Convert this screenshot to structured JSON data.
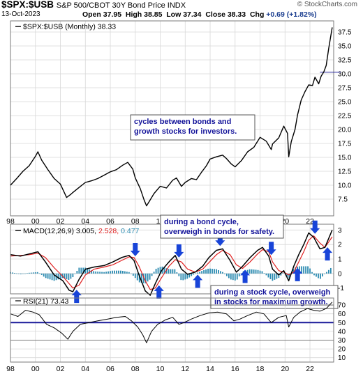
{
  "header": {
    "symbol": "$SPX:$USB",
    "description": "S&P 500/CBOT 30Y Bond Price INDX",
    "date": "13-Oct-2023",
    "open_label": "Open",
    "open": "37.95",
    "high_label": "High",
    "high": "38.85",
    "low_label": "Low",
    "low": "37.34",
    "close_label": "Close",
    "close": "38.33",
    "chg_label": "Chg",
    "chg": "+0.69 (+1.82%)",
    "credit": "© StockCharts.com"
  },
  "colors": {
    "price": "#000000",
    "macd": "#000000",
    "signal": "#e02020",
    "histogram": "#2a8ab0",
    "arrows": "#1844d8",
    "rsi_lines": "#1a1a9a",
    "note_text": "#14149a",
    "note_border": "#555555",
    "grid": "#d8d8d8"
  },
  "chart_data": [
    {
      "type": "line",
      "panel": "price",
      "legend": "$SPX:$USB (Monthly) 38.33",
      "x_tick_labels": [
        "98",
        "00",
        "02",
        "04",
        "06",
        "08",
        "10",
        "12",
        "14",
        "16",
        "18",
        "20",
        "22"
      ],
      "y_ticks": [
        7.5,
        10,
        12.5,
        15,
        17.5,
        20,
        22.5,
        25,
        27.5,
        30,
        32.5,
        35,
        37.5
      ],
      "y_tick_labels": [
        "7.5",
        "10.0",
        "12.5",
        "15.0",
        "17.5",
        "20.0",
        "22.5",
        "25.0",
        "27.5",
        "30.0",
        "32.5",
        "35.0",
        "37.5"
      ],
      "ylim": [
        4.5,
        39.5
      ],
      "xlim": [
        1998.0,
        2023.9
      ],
      "x": [
        1998.0,
        1998.5,
        1999.0,
        1999.5,
        2000.0,
        2000.2,
        2000.5,
        2001.0,
        2001.5,
        2002.0,
        2002.5,
        2002.8,
        2003.0,
        2003.5,
        2004.0,
        2004.5,
        2005.0,
        2005.5,
        2006.0,
        2006.5,
        2007.0,
        2007.4,
        2007.8,
        2008.0,
        2008.4,
        2008.7,
        2008.9,
        2009.1,
        2009.5,
        2010.0,
        2010.5,
        2011.0,
        2011.3,
        2011.7,
        2012.0,
        2012.5,
        2012.9,
        2013.3,
        2013.7,
        2014.0,
        2014.5,
        2015.0,
        2015.3,
        2015.7,
        2016.0,
        2016.5,
        2017.0,
        2017.5,
        2018.0,
        2018.5,
        2018.9,
        2019.0,
        2019.5,
        2019.9,
        2020.2,
        2020.3,
        2020.5,
        2020.8,
        2021.0,
        2021.3,
        2021.6,
        2021.9,
        2022.2,
        2022.4,
        2022.7,
        2022.9,
        2023.1,
        2023.3,
        2023.5,
        2023.78
      ],
      "y": [
        10.0,
        11.2,
        12.5,
        13.5,
        15.2,
        16.0,
        14.5,
        12.8,
        11.2,
        10.2,
        7.8,
        8.3,
        8.7,
        9.6,
        10.5,
        10.8,
        11.2,
        11.8,
        12.4,
        12.8,
        13.6,
        14.1,
        12.9,
        11.3,
        9.4,
        7.4,
        6.3,
        7.0,
        8.5,
        9.8,
        9.5,
        10.9,
        11.3,
        9.8,
        10.5,
        11.2,
        11.0,
        12.3,
        13.5,
        14.7,
        15.1,
        15.4,
        14.8,
        13.8,
        13.3,
        14.4,
        16.0,
        16.8,
        18.6,
        17.9,
        16.4,
        17.4,
        18.5,
        20.6,
        19.3,
        15.1,
        17.8,
        20.0,
        22.6,
        25.3,
        26.8,
        28.0,
        27.9,
        29.4,
        28.2,
        29.6,
        30.3,
        31.5,
        34.5,
        38.33
      ],
      "reference_line": 30.3,
      "annotations": [
        "cycles between bonds and",
        "growth stocks for investors."
      ]
    },
    {
      "type": "line",
      "panel": "macd",
      "legend_label": "MACD(12,26,9)",
      "legend_values": [
        "3.005",
        "2.528",
        "0.477"
      ],
      "y_ticks": [
        -1,
        0,
        1,
        2,
        3
      ],
      "y_tick_labels": [
        "-1",
        "0",
        "1",
        "2",
        "3"
      ],
      "ylim": [
        -1.4,
        3.4
      ],
      "xlim": [
        1998.0,
        2023.9
      ],
      "series": [
        {
          "role": "macd",
          "x": [
            1998.0,
            1998.8,
            1999.5,
            2000.2,
            2000.8,
            2001.5,
            2002.2,
            2002.7,
            2003.0,
            2003.5,
            2004.0,
            2004.7,
            2005.5,
            2006.2,
            2006.9,
            2007.5,
            2007.9,
            2008.3,
            2008.8,
            2009.2,
            2009.6,
            2010.1,
            2010.7,
            2011.2,
            2011.7,
            2012.2,
            2012.8,
            2013.4,
            2013.9,
            2014.5,
            2015.0,
            2015.6,
            2016.1,
            2016.6,
            2017.2,
            2017.8,
            2018.2,
            2018.7,
            2019.0,
            2019.5,
            2019.9,
            2020.3,
            2020.7,
            2021.1,
            2021.5,
            2021.9,
            2022.3,
            2022.8,
            2023.2,
            2023.78
          ],
          "y": [
            1.3,
            1.2,
            1.35,
            1.5,
            0.8,
            -0.1,
            -0.5,
            -1.15,
            -1.25,
            -0.4,
            0.3,
            0.45,
            0.55,
            0.8,
            1.1,
            1.25,
            0.9,
            -0.1,
            -1.2,
            -1.5,
            -0.7,
            0.2,
            0.8,
            1.25,
            0.3,
            -0.05,
            0.1,
            0.5,
            1.1,
            1.6,
            1.7,
            0.9,
            0.1,
            0.5,
            1.1,
            1.6,
            1.8,
            1.2,
            0.3,
            -0.1,
            0.2,
            -0.5,
            0.5,
            1.3,
            2.0,
            2.8,
            2.5,
            1.7,
            1.8,
            3.0
          ]
        },
        {
          "role": "signal",
          "x": [
            1998.0,
            1998.8,
            1999.5,
            2000.2,
            2000.8,
            2001.5,
            2002.2,
            2002.7,
            2003.0,
            2003.5,
            2004.0,
            2004.7,
            2005.5,
            2006.2,
            2006.9,
            2007.5,
            2007.9,
            2008.3,
            2008.8,
            2009.2,
            2009.6,
            2010.1,
            2010.7,
            2011.2,
            2011.7,
            2012.2,
            2012.8,
            2013.4,
            2013.9,
            2014.5,
            2015.0,
            2015.6,
            2016.1,
            2016.6,
            2017.2,
            2017.8,
            2018.2,
            2018.7,
            2019.0,
            2019.5,
            2019.9,
            2020.3,
            2020.7,
            2021.1,
            2021.5,
            2021.9,
            2022.3,
            2022.8,
            2023.2,
            2023.78
          ],
          "y": [
            1.2,
            1.25,
            1.3,
            1.4,
            1.1,
            0.4,
            -0.2,
            -0.7,
            -1.0,
            -0.8,
            -0.1,
            0.3,
            0.45,
            0.6,
            0.9,
            1.15,
            1.1,
            0.5,
            -0.5,
            -1.1,
            -1.0,
            -0.3,
            0.5,
            0.95,
            0.8,
            0.3,
            0.1,
            0.3,
            0.75,
            1.3,
            1.6,
            1.3,
            0.6,
            0.35,
            0.8,
            1.35,
            1.65,
            1.5,
            0.8,
            0.2,
            0.1,
            -0.1,
            0.1,
            0.8,
            1.5,
            2.3,
            2.6,
            2.1,
            1.8,
            2.53
          ]
        }
      ],
      "arrows_down_x": [
        2008.0,
        2011.5,
        2014.8,
        2018.9,
        2022.4
      ],
      "arrows_up_x": [
        2003.3,
        2009.9,
        2013.0,
        2016.8,
        2021.0,
        2023.4
      ],
      "annotations": [
        "during a bond cycle,",
        "overweigh in bonds for safety.",
        "during a stock cycle, overweigh",
        "in stocks for maximum growth."
      ]
    },
    {
      "type": "line",
      "panel": "rsi",
      "legend_label": "RSI(21)",
      "legend_value": "73.43",
      "y_ticks": [
        10,
        20,
        30,
        40,
        50,
        60,
        70
      ],
      "y_tick_labels": [
        "10",
        "20",
        "30",
        "40",
        "50",
        "60",
        "70"
      ],
      "ylim": [
        5,
        78
      ],
      "xlim": [
        1998.0,
        2023.9
      ],
      "reference_lines": [
        50,
        70,
        30
      ],
      "x_tick_labels": [
        "98",
        "00",
        "02",
        "04",
        "06",
        "08",
        "10",
        "12",
        "14",
        "16",
        "18",
        "20",
        "22"
      ],
      "x": [
        1998.0,
        1998.6,
        1999.2,
        1999.8,
        2000.3,
        2000.9,
        2001.5,
        2002.1,
        2002.6,
        2003.0,
        2003.6,
        2004.3,
        2005.0,
        2005.8,
        2006.5,
        2007.2,
        2007.7,
        2008.2,
        2008.6,
        2008.9,
        2009.3,
        2009.8,
        2010.4,
        2011.0,
        2011.5,
        2011.9,
        2012.5,
        2013.2,
        2013.9,
        2014.6,
        2015.3,
        2015.9,
        2016.4,
        2017.0,
        2017.7,
        2018.3,
        2018.9,
        2019.5,
        2020.1,
        2020.3,
        2020.7,
        2021.2,
        2021.8,
        2022.3,
        2022.8,
        2023.3,
        2023.78
      ],
      "y": [
        60,
        57,
        64,
        62,
        59,
        48,
        44,
        38,
        31,
        40,
        48,
        50,
        52,
        54,
        56,
        57,
        52,
        45,
        36,
        27,
        40,
        48,
        53,
        56,
        48,
        50,
        54,
        58,
        61,
        62,
        60,
        52,
        54,
        58,
        62,
        60,
        50,
        56,
        58,
        45,
        56,
        62,
        66,
        64,
        63,
        66,
        73.43
      ]
    }
  ]
}
